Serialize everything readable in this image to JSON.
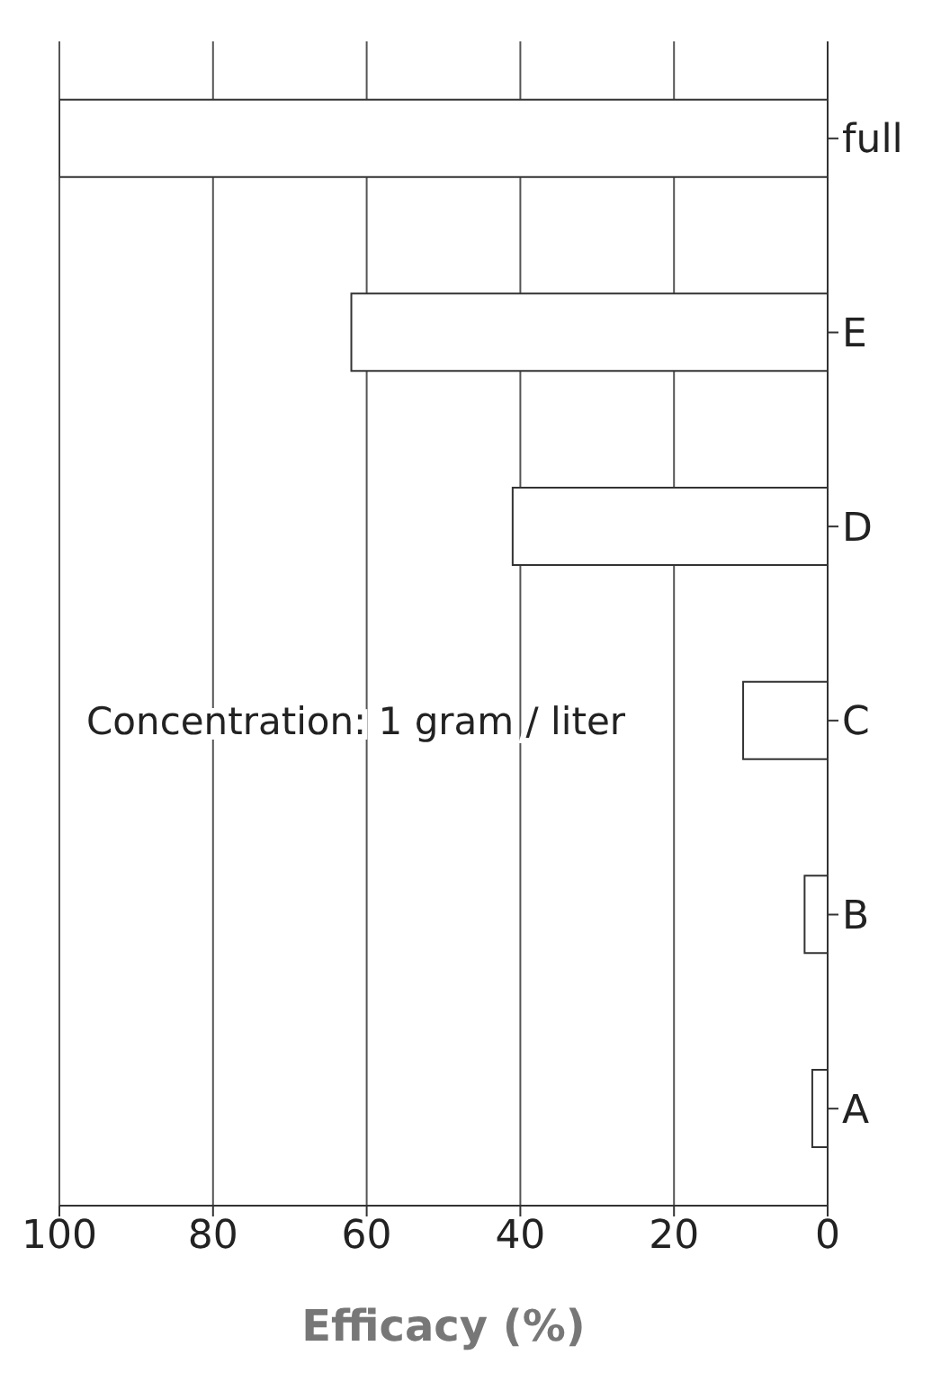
{
  "chart_data": {
    "type": "bar",
    "orientation": "horizontal",
    "title": "Concentration: 1 gram / liter",
    "xlabel": "Efficacy (%)",
    "categories": [
      "full",
      "E",
      "D",
      "C",
      "B",
      "A"
    ],
    "values": [
      100,
      62,
      41,
      11,
      3,
      2
    ],
    "color": "#ffffff",
    "xlim": [
      100,
      0
    ],
    "xticks": [
      0,
      20,
      40,
      60,
      80,
      100
    ],
    "grid": "x"
  }
}
